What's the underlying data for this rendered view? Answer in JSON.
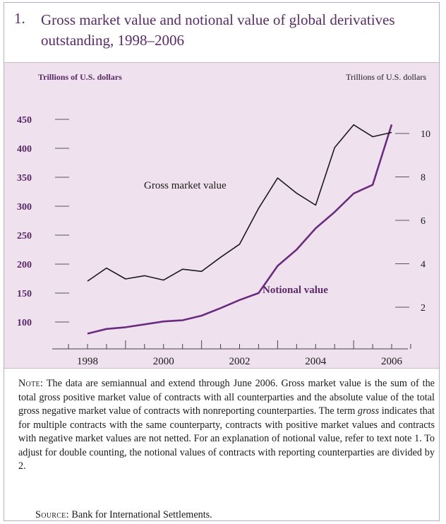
{
  "figure": {
    "number": "1.",
    "title": "Gross market value and notional value of global derivatives outstanding, 1998–2006"
  },
  "chart_data": {
    "type": "line",
    "left_axis_label": "Trillions of U.S. dollars",
    "right_axis_label": "Trillions of U.S. dollars",
    "left_ticks": [
      "450",
      "400",
      "350",
      "300",
      "250",
      "200",
      "150",
      "100"
    ],
    "right_ticks": [
      "10",
      "8",
      "6",
      "4",
      "2"
    ],
    "x_ticks": [
      "1998",
      "2000",
      "2002",
      "2004",
      "2006"
    ],
    "left_ylim": [
      50,
      450
    ],
    "right_ylim": [
      0,
      11
    ],
    "grid": false,
    "series": [
      {
        "name": "Notional value",
        "axis": "left",
        "color": "#6a2c7e",
        "x": [
          1998.0,
          1998.5,
          1999.0,
          1999.5,
          2000.0,
          2000.5,
          2001.0,
          2001.5,
          2002.0,
          2002.5,
          2003.0,
          2003.5,
          2004.0,
          2004.5,
          2005.0,
          2005.5,
          2006.0
        ],
        "y": [
          80,
          88,
          91,
          96,
          101,
          103,
          111,
          124,
          138,
          150,
          197,
          225,
          262,
          290,
          322,
          337,
          441
        ]
      },
      {
        "name": "Gross market value",
        "axis": "right",
        "color": "#1a1a1a",
        "x": [
          1998.0,
          1998.5,
          1999.0,
          1999.5,
          2000.0,
          2000.5,
          2001.0,
          2001.5,
          2002.0,
          2002.5,
          2003.0,
          2003.5,
          2004.0,
          2004.5,
          2005.0,
          2005.5,
          2006.0
        ],
        "y": [
          3.2,
          3.8,
          3.3,
          3.45,
          3.25,
          3.75,
          3.65,
          4.3,
          4.9,
          6.55,
          7.95,
          7.25,
          6.7,
          9.35,
          10.4,
          9.85,
          10.05
        ]
      }
    ]
  },
  "note": {
    "note_label": "Note:",
    "note_text": "The data are semiannual and extend through June 2006. Gross market value is the sum of the total gross positive market value of contracts with all counterparties and the absolute value of the total gross negative market value of contracts with nonreporting counterparties. The term ",
    "note_italic": "gross",
    "note_text_2": " indicates that for multiple contracts with the same counterparty, contracts with positive market values and contracts with negative market values are not netted. For an explanation of notional value, refer to text note 1. To adjust for double counting, the notional values of contracts with reporting counterparties are divided by 2.",
    "source_label": "Source:",
    "source_text": "Bank for International Settlements."
  }
}
